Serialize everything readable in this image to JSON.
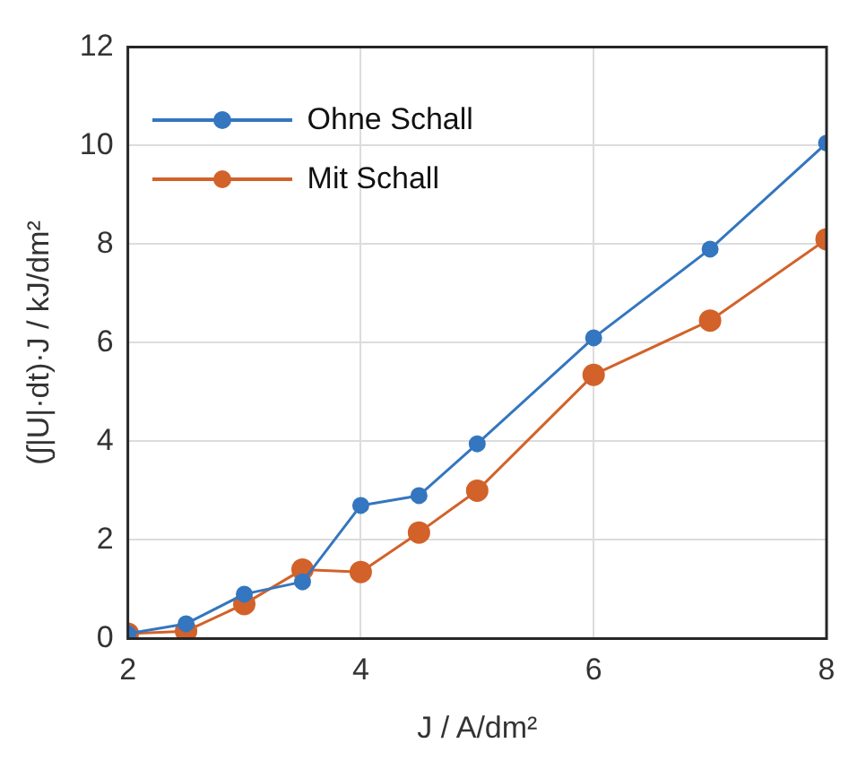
{
  "chart_data": {
    "type": "line",
    "xlabel": "J / A/dm²",
    "ylabel": "(∫|U|·dt)·J / kJ/dm²",
    "x": [
      2,
      2.5,
      3,
      3.5,
      4,
      4.5,
      5,
      6,
      7,
      8
    ],
    "series": [
      {
        "name": "Ohne Schall",
        "color": "#3476bf",
        "values": [
          0.1,
          0.3,
          0.9,
          1.15,
          2.7,
          2.9,
          3.95,
          6.1,
          7.9,
          10.05
        ]
      },
      {
        "name": "Mit Schall",
        "color": "#d2622a",
        "values": [
          0.1,
          0.15,
          0.7,
          1.4,
          1.35,
          2.15,
          3.0,
          5.35,
          6.45,
          8.1
        ]
      }
    ],
    "xlim": [
      2,
      8
    ],
    "xticks": [
      2,
      4,
      6,
      8
    ],
    "ylim": [
      0,
      12
    ],
    "yticks": [
      0,
      2,
      4,
      6,
      8,
      10,
      12
    ],
    "grid": true,
    "legend": "top left",
    "marker": "circle",
    "line_style": "solid"
  }
}
